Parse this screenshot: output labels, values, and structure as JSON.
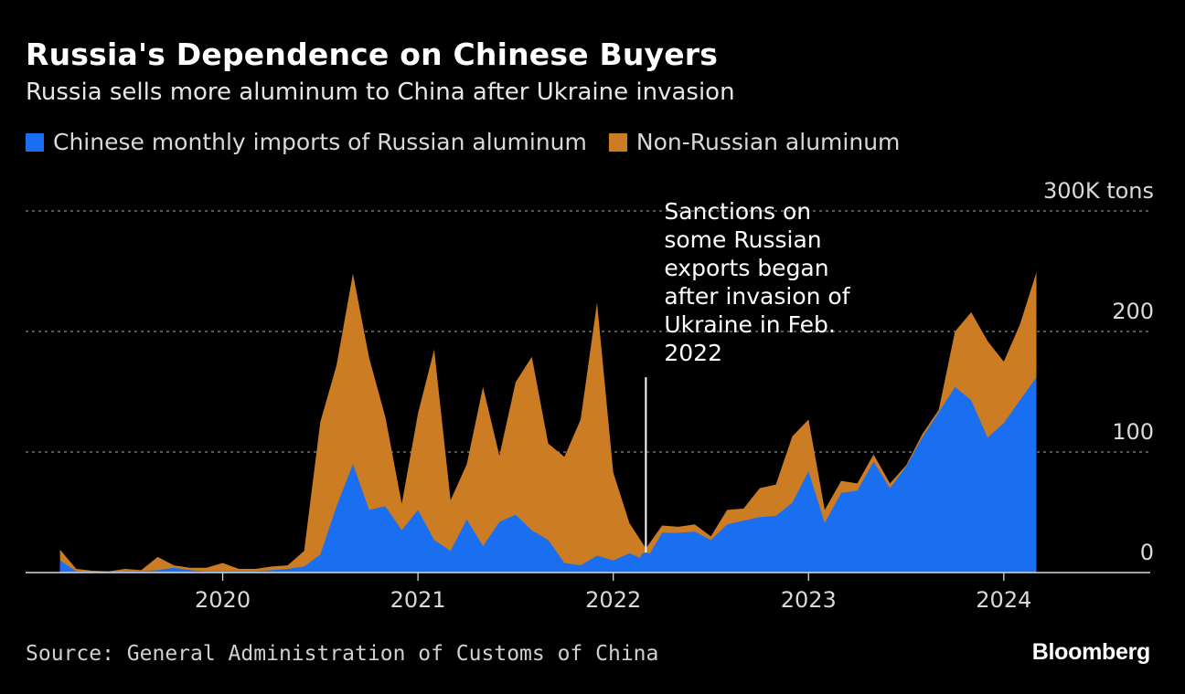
{
  "chart_data": {
    "type": "area",
    "title": "Russia's Dependence on Chinese Buyers",
    "subtitle": "Russia sells more aluminum to China after Ukraine invasion",
    "unit_label": "300K tons",
    "ylim": [
      0,
      300
    ],
    "yticks": [
      {
        "value": 300,
        "label": "300K tons"
      },
      {
        "value": 200,
        "label": "200"
      },
      {
        "value": 100,
        "label": "100"
      },
      {
        "value": 0,
        "label": "0"
      }
    ],
    "xticks": [
      {
        "value": 2020,
        "label": "2020"
      },
      {
        "value": 2021,
        "label": "2021"
      },
      {
        "value": 2022,
        "label": "2022"
      },
      {
        "value": 2023,
        "label": "2023"
      },
      {
        "value": 2024,
        "label": "2024"
      }
    ],
    "xlim": [
      2019.0,
      2024.75
    ],
    "legend": [
      {
        "name": "Chinese monthly imports of Russian aluminum",
        "color": "#1a6ff0"
      },
      {
        "name": "Non-Russian aluminum",
        "color": "#cc7c22"
      }
    ],
    "x": [
      2019.167,
      2019.25,
      2019.333,
      2019.417,
      2019.5,
      2019.583,
      2019.667,
      2019.75,
      2019.833,
      2019.917,
      2020.0,
      2020.083,
      2020.167,
      2020.25,
      2020.333,
      2020.417,
      2020.5,
      2020.583,
      2020.667,
      2020.75,
      2020.833,
      2020.917,
      2021.0,
      2021.083,
      2021.167,
      2021.25,
      2021.333,
      2021.417,
      2021.5,
      2021.583,
      2021.667,
      2021.75,
      2021.833,
      2021.917,
      2022.0,
      2022.083,
      2022.167,
      2022.25,
      2022.333,
      2022.417,
      2022.5,
      2022.583,
      2022.667,
      2022.75,
      2022.833,
      2022.917,
      2023.0,
      2023.083,
      2023.167,
      2023.25,
      2023.333,
      2023.417,
      2023.5,
      2023.583,
      2023.667,
      2023.75,
      2023.833,
      2023.917,
      2024.0,
      2024.083,
      2024.167
    ],
    "series": [
      {
        "name": "Chinese monthly imports of Russian aluminum",
        "values": [
          10,
          1,
          0.5,
          0.5,
          1,
          1,
          2,
          4,
          2,
          1,
          1,
          1,
          1,
          2,
          3,
          5,
          15,
          55,
          90,
          52,
          55,
          35,
          52,
          27,
          18,
          44,
          22,
          42,
          48,
          35,
          27,
          8,
          6,
          14,
          10,
          16,
          10,
          33,
          33,
          34,
          27,
          40,
          43,
          46,
          47,
          58,
          84,
          41,
          66,
          68,
          92,
          70,
          88,
          112,
          133,
          154,
          143,
          112,
          124,
          143,
          162
        ]
      },
      {
        "name": "Non-Russian aluminum",
        "values": [
          9,
          2,
          1,
          0.5,
          2,
          1,
          11,
          2,
          2,
          3,
          7,
          2,
          2,
          3,
          3,
          13,
          110,
          117,
          158,
          126,
          74,
          22,
          80,
          158,
          42,
          46,
          132,
          55,
          110,
          144,
          80,
          88,
          121,
          210,
          73,
          25,
          10,
          6,
          5,
          6,
          3,
          12,
          10,
          24,
          26,
          55,
          43,
          11,
          10,
          6,
          6,
          4,
          1,
          3,
          2,
          46,
          73,
          80,
          51,
          63,
          87
        ]
      }
    ],
    "annotation": {
      "x": 2022.167,
      "lines": [
        "Sanctions on",
        "some Russian",
        "exports began",
        "after invasion of",
        "Ukraine in Feb.",
        "2022"
      ]
    }
  },
  "source": "Source: General Administration of Customs of China",
  "brand": "Bloomberg"
}
